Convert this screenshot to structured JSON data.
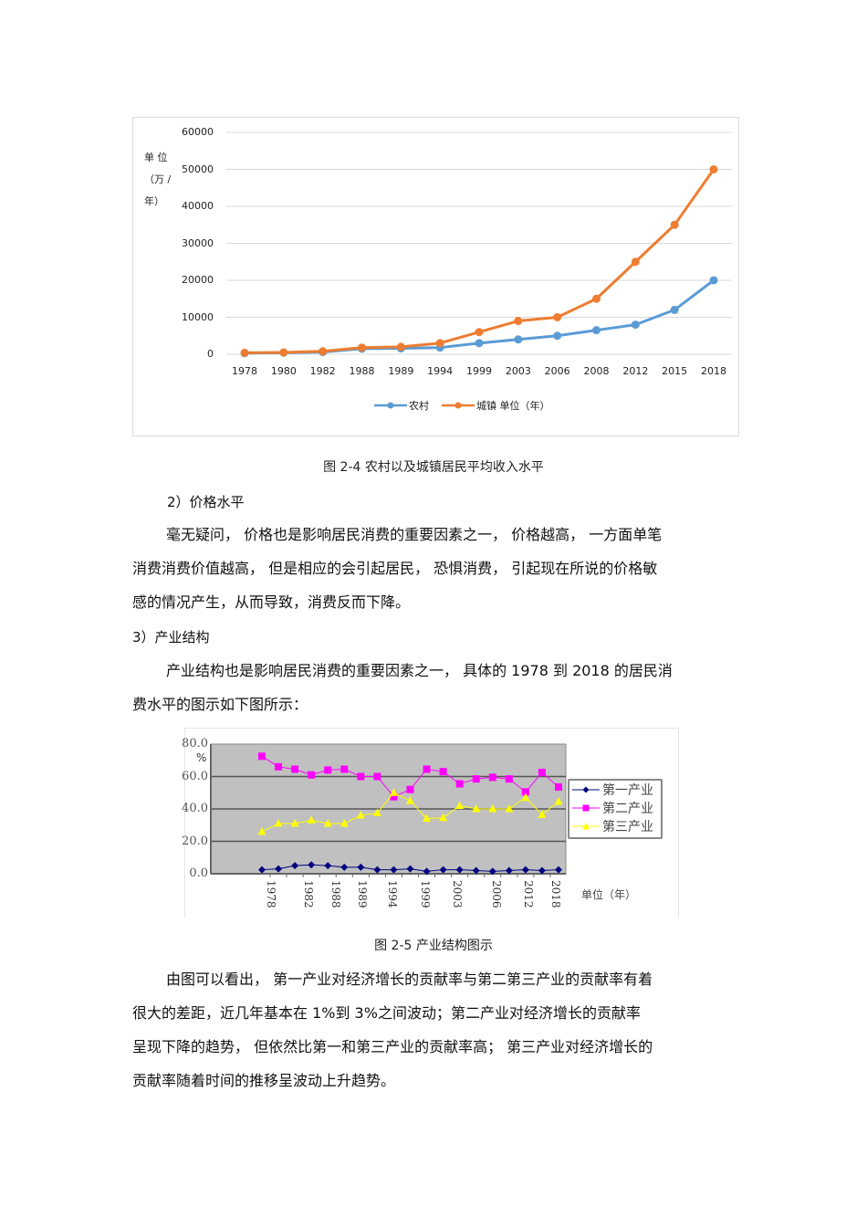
{
  "figure_2_4": {
    "caption": "图 2-4  农村以及城镇居民平均收入水平",
    "y_unit_label": [
      "单  位",
      "（万 /",
      "年）"
    ],
    "legend": {
      "rural": "农村",
      "urban": "城镇  单位（年）"
    }
  },
  "section_2": {
    "heading": "2）价格水平",
    "paragraph_lines": [
      "毫无疑问，  价格也是影响居民消费的重要因素之一，      价格越高，  一方面单笔",
      "消费消费价值越高，   但是相应的会引起居民，    恐惧消费，  引起现在所说的价格敏",
      "感的情况产生，从而导致，消费反而下降。"
    ]
  },
  "section_3": {
    "heading": "3）产业结构",
    "paragraph_lines": [
      "产业结构也是影响居民消费的重要因素之一，      具体的  1978 到 2018 的居民消",
      "费水平的图示如下图所示："
    ]
  },
  "figure_2_5": {
    "caption": "图  2-5  产业结构图示",
    "y_unit_label": "%",
    "x_unit_label": "单位（年）",
    "legend": [
      "第一产业",
      "第二产业",
      "第三产业"
    ]
  },
  "conclusion": {
    "paragraph_lines": [
      "由图可以看出，  第一产业对经济增长的贡献率与第二第三产业的贡献率有着",
      "很大的差距，近几年基本在      1%到  3%之间波动；第二产业对经济增长的贡献率",
      "呈现下降的趋势，   但依然比第一和第三产业的贡献率高；      第三产业对经济增长的",
      "贡献率随着时间的推移呈波动上升趋势。"
    ]
  },
  "colors": {
    "rural": "#5b9bd5",
    "urban": "#ed7d31",
    "primary": "#000080",
    "secondary": "#ff00ff",
    "tertiary": "#ffff00",
    "plot_bg2": "#c0c0c0"
  },
  "chart_data": [
    {
      "type": "line",
      "title": "图 2-4 农村以及城镇居民平均收入水平",
      "xlabel": "",
      "ylabel": "单位（万/年）",
      "ylim": [
        0,
        60000
      ],
      "yticks": [
        0,
        10000,
        20000,
        30000,
        40000,
        50000,
        60000
      ],
      "grid": true,
      "legend_position": "bottom",
      "categories": [
        "1978",
        "1980",
        "1982",
        "1988",
        "1989",
        "1994",
        "1999",
        "2003",
        "2006",
        "2008",
        "2012",
        "2015",
        "2018"
      ],
      "series": [
        {
          "name": "农村",
          "color": "#5b9bd5",
          "values": [
            300,
            400,
            600,
            1500,
            1600,
            1800,
            3000,
            4000,
            5000,
            6500,
            8000,
            12000,
            20000
          ]
        },
        {
          "name": "城镇",
          "color": "#ed7d31",
          "values": [
            400,
            500,
            800,
            1800,
            2000,
            3000,
            6000,
            9000,
            10000,
            15000,
            25000,
            35000,
            50000
          ]
        }
      ]
    },
    {
      "type": "line",
      "title": "图 2-5 产业结构图示",
      "xlabel": "单位（年）",
      "ylabel": "%",
      "ylim": [
        0,
        80
      ],
      "yticks": [
        "0.0",
        "20.0",
        "40.0",
        "60.0",
        "80.0"
      ],
      "grid": true,
      "legend_position": "right",
      "x_tick_labels": [
        "1978",
        "1982",
        "1988",
        "1989",
        "1994",
        "1999",
        "2003",
        "2006",
        "2012",
        "2018"
      ],
      "point_count": 19,
      "series": [
        {
          "name": "第一产业",
          "color": "#000080",
          "marker": "diamond",
          "values": [
            2.5,
            3.0,
            5.0,
            5.5,
            5.0,
            4.0,
            4.0,
            2.5,
            2.5,
            3.0,
            1.5,
            2.5,
            2.5,
            2.0,
            1.5,
            2.0,
            2.5,
            2.0,
            2.5
          ]
        },
        {
          "name": "第二产业",
          "color": "#ff00ff",
          "marker": "square",
          "values": [
            72.5,
            66.0,
            64.5,
            61.0,
            64.0,
            64.5,
            60.0,
            60.0,
            47.5,
            52.0,
            64.5,
            63.0,
            55.5,
            58.5,
            59.5,
            58.5,
            50.5,
            62.5,
            53.5
          ]
        },
        {
          "name": "第三产业",
          "color": "#ffff00",
          "marker": "triangle",
          "values": [
            26.0,
            31.0,
            31.0,
            33.0,
            31.0,
            31.0,
            36.0,
            37.5,
            50.0,
            45.0,
            34.0,
            34.5,
            42.0,
            40.0,
            40.0,
            40.0,
            47.0,
            36.5,
            44.5
          ]
        }
      ]
    }
  ]
}
